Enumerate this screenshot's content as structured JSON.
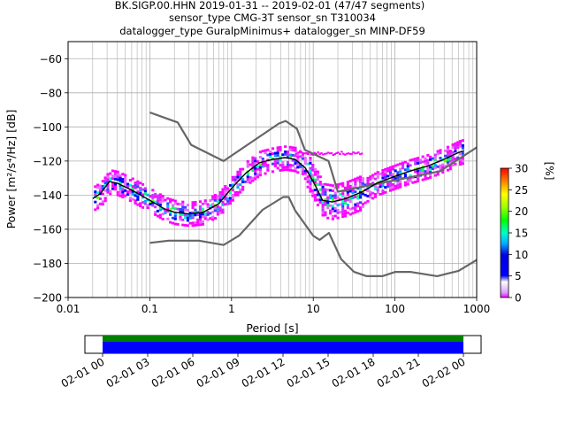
{
  "title": {
    "line1": "BK.SIGP.00.HHN   2019-01-31 -- 2019-02-01  (47/47 segments)",
    "line2": "sensor_type CMG-3T sensor_sn T310034",
    "line3": "datalogger_type GuralpMinimus+ datalogger_sn MINP-DF59"
  },
  "chart_data": {
    "type": "line",
    "title": "BK.SIGP.00.HHN   2019-01-31 -- 2019-02-01  (47/47 segments)",
    "xlabel": "Period [s]",
    "ylabel": "Power [m²/s⁴/Hz] [dB]",
    "xscale": "log",
    "xlim": [
      0.01,
      1000
    ],
    "ylim": [
      -200,
      -50
    ],
    "x_tick_labels": [
      "0.01",
      "0.1",
      "1",
      "10",
      "100",
      "1000"
    ],
    "y_tick_labels": [
      "−60",
      "−80",
      "−100",
      "−120",
      "−140",
      "−160",
      "−180",
      "−200"
    ],
    "y_ticks": [
      -60,
      -80,
      -100,
      -120,
      -140,
      -160,
      -180,
      -200
    ],
    "grid": true,
    "series": [
      {
        "role": "new-high-noise-model",
        "color": "#666666",
        "x": [
          0.1,
          0.22,
          0.32,
          0.8,
          3.8,
          4.6,
          6.3,
          7.9,
          15.4,
          20,
          354.8,
          1000
        ],
        "y": [
          -91.5,
          -97.4,
          -110.5,
          -120,
          -98,
          -96.5,
          -101,
          -113.5,
          -120,
          -138,
          -126,
          -112
        ]
      },
      {
        "role": "new-low-noise-model",
        "color": "#666666",
        "x": [
          0.1,
          0.17,
          0.4,
          0.8,
          1.24,
          2.4,
          4.3,
          5.0,
          6.0,
          10.0,
          12.0,
          15.6,
          21.9,
          31.6,
          45,
          70,
          101,
          154,
          328,
          600,
          1000
        ],
        "y": [
          -168,
          -166.7,
          -166.7,
          -169.2,
          -163.7,
          -148.6,
          -141.1,
          -141.1,
          -149,
          -163.8,
          -166.2,
          -162.1,
          -177.5,
          -185,
          -187.5,
          -187.5,
          -185,
          -185,
          -187.5,
          -184.4,
          -178
        ]
      },
      {
        "role": "mode",
        "color": "#000000",
        "x": [
          0.02,
          0.025,
          0.032,
          0.04,
          0.06,
          0.1,
          0.15,
          0.2,
          0.3,
          0.45,
          0.7,
          1.0,
          1.5,
          2.2,
          3.2,
          4.5,
          6.0,
          8.0,
          10.5,
          13,
          17,
          25,
          40,
          60,
          100,
          150,
          250,
          400,
          600,
          700
        ],
        "y": [
          -142,
          -139,
          -132,
          -133,
          -137,
          -143,
          -148,
          -150,
          -151,
          -150,
          -145,
          -136,
          -127,
          -121,
          -119,
          -118,
          -119,
          -124,
          -134,
          -143,
          -144,
          -142,
          -138,
          -133,
          -129,
          -126,
          -123,
          -119,
          -115,
          -114
        ]
      }
    ],
    "colorbar": {
      "label": "[%]",
      "min": 0,
      "max": 30,
      "tick_labels": [
        "0",
        "5",
        "10",
        "15",
        "20",
        "25",
        "30"
      ]
    },
    "timeline": {
      "tick_labels": [
        "02-01 00",
        "02-01 03",
        "02-01 06",
        "02-01 09",
        "02-01 12",
        "02-01 15",
        "02-01 18",
        "02-01 21",
        "02-02 00"
      ],
      "bar_colors": [
        "#008000",
        "#0000ff"
      ]
    }
  },
  "colors": {
    "noise_model": "#666666",
    "mode_line": "#000000",
    "grid": "#b0b0b0"
  }
}
